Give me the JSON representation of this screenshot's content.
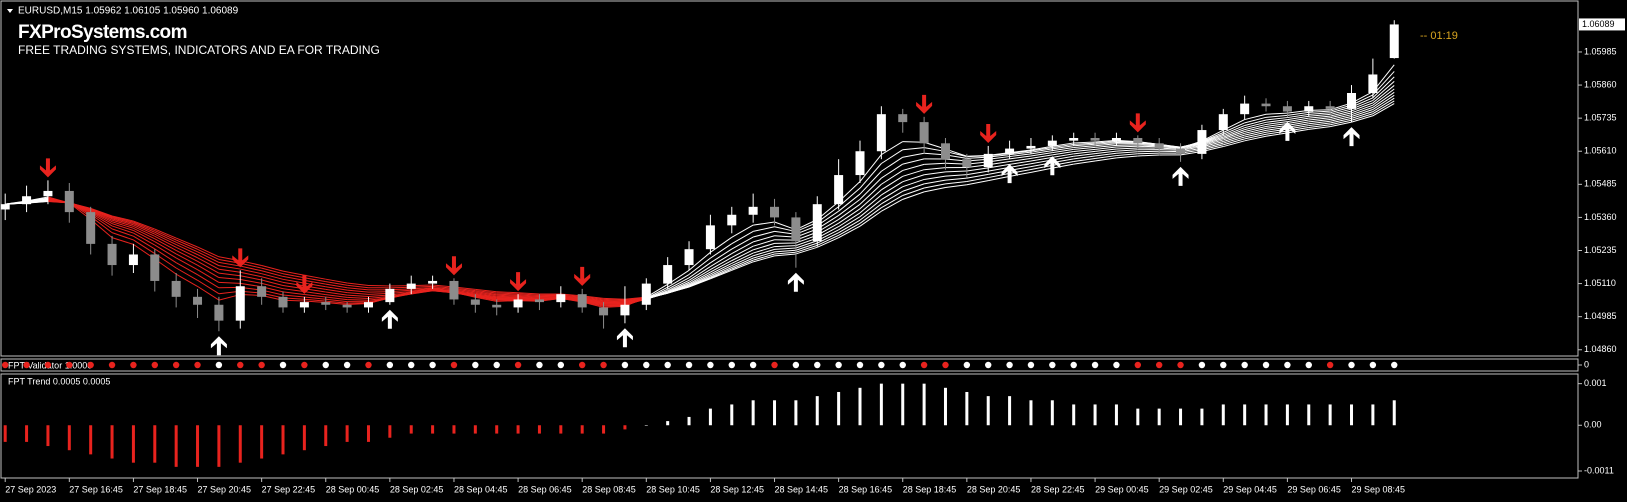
{
  "watermark": {
    "brand": "FXProSystems.com",
    "tagline": "FREE TRADING SYSTEMS, INDICATORS AND EA FOR TRADING"
  },
  "countdown": "-- 01:19",
  "chart_data": [
    {
      "type": "candlestick",
      "title": "EURUSD,M15  1.05962 1.06105 1.05960 1.06089",
      "categories": [
        "27 Sep 2023",
        null,
        null,
        "27 Sep 16:45",
        null,
        null,
        "27 Sep 18:45",
        null,
        null,
        "27 Sep 20:45",
        null,
        null,
        "27 Sep 22:45",
        null,
        null,
        "28 Sep 00:45",
        null,
        null,
        "28 Sep 02:45",
        null,
        null,
        "28 Sep 04:45",
        null,
        null,
        "28 Sep 06:45",
        null,
        null,
        "28 Sep 08:45",
        null,
        null,
        "28 Sep 10:45",
        null,
        null,
        "28 Sep 12:45",
        null,
        null,
        "28 Sep 14:45",
        null,
        null,
        "28 Sep 16:45",
        null,
        null,
        "28 Sep 18:45",
        null,
        null,
        "28 Sep 20:45",
        null,
        null,
        "28 Sep 22:45",
        null,
        null,
        "29 Sep 00:45",
        null,
        null,
        "29 Sep 02:45",
        null,
        null,
        "29 Sep 04:45",
        null,
        null,
        "29 Sep 06:45",
        null,
        null,
        "29 Sep 08:45",
        null,
        null
      ],
      "open": [
        1.0539,
        1.0541,
        1.0544,
        1.0546,
        1.0538,
        1.0526,
        1.0518,
        1.0522,
        1.0512,
        1.0506,
        1.0503,
        1.0497,
        1.051,
        1.0506,
        1.0502,
        1.0504,
        1.0503,
        1.0502,
        1.0504,
        1.0509,
        1.0511,
        1.0512,
        1.0505,
        1.0503,
        1.0502,
        1.0505,
        1.0504,
        1.0507,
        1.0502,
        1.0499,
        1.0503,
        1.0511,
        1.0518,
        1.0524,
        1.0533,
        1.0537,
        1.054,
        1.0536,
        1.0527,
        1.0541,
        1.0552,
        1.0561,
        1.0575,
        1.0572,
        1.0564,
        1.0558,
        1.0555,
        1.056,
        1.0562,
        1.0563,
        1.0565,
        1.0566,
        1.0565,
        1.0566,
        1.0564,
        1.0562,
        1.056,
        1.0569,
        1.0575,
        1.0579,
        1.0578,
        1.0576,
        1.0578,
        1.0577,
        1.0583,
        1.05962
      ],
      "high": [
        1.0545,
        1.0548,
        1.055,
        1.0549,
        1.054,
        1.0529,
        1.0526,
        1.0524,
        1.0515,
        1.0509,
        1.0506,
        1.0516,
        1.0513,
        1.0508,
        1.0506,
        1.0506,
        1.0504,
        1.0506,
        1.0511,
        1.0514,
        1.0514,
        1.0513,
        1.0507,
        1.0505,
        1.0507,
        1.0507,
        1.051,
        1.0509,
        1.0504,
        1.051,
        1.0513,
        1.0521,
        1.0527,
        1.0537,
        1.054,
        1.0545,
        1.0543,
        1.0538,
        1.0544,
        1.0558,
        1.0565,
        1.0578,
        1.0577,
        1.0574,
        1.0566,
        1.056,
        1.0563,
        1.0565,
        1.0566,
        1.0567,
        1.0568,
        1.0568,
        1.0568,
        1.0567,
        1.0566,
        1.0564,
        1.0571,
        1.0577,
        1.0582,
        1.0581,
        1.058,
        1.058,
        1.058,
        1.0586,
        1.0596,
        1.06105
      ],
      "low": [
        1.0535,
        1.0538,
        1.0541,
        1.0534,
        1.0522,
        1.0514,
        1.0515,
        1.0508,
        1.0502,
        1.0498,
        1.0493,
        1.0494,
        1.0503,
        1.05,
        1.05,
        1.0501,
        1.05,
        1.05,
        1.0503,
        1.0507,
        1.0509,
        1.0503,
        1.05,
        1.0499,
        1.05,
        1.0501,
        1.0502,
        1.05,
        1.0494,
        1.0496,
        1.0501,
        1.0509,
        1.0516,
        1.0522,
        1.053,
        1.0534,
        1.0533,
        1.0517,
        1.0525,
        1.0539,
        1.0549,
        1.0558,
        1.0568,
        1.056,
        1.0554,
        1.0551,
        1.0553,
        1.0558,
        1.056,
        1.0561,
        1.0563,
        1.0563,
        1.0563,
        1.0562,
        1.056,
        1.0557,
        1.0558,
        1.0567,
        1.0573,
        1.0576,
        1.0574,
        1.0574,
        1.0575,
        1.0572,
        1.0581,
        1.0596
      ],
      "close": [
        1.0541,
        1.0544,
        1.0546,
        1.0538,
        1.0526,
        1.0518,
        1.0522,
        1.0512,
        1.0506,
        1.0503,
        1.0497,
        1.051,
        1.0506,
        1.0502,
        1.0504,
        1.0503,
        1.0502,
        1.0504,
        1.0509,
        1.0511,
        1.0512,
        1.0505,
        1.0503,
        1.0502,
        1.0505,
        1.0504,
        1.0507,
        1.0502,
        1.0499,
        1.0503,
        1.0511,
        1.0518,
        1.0524,
        1.0533,
        1.0537,
        1.054,
        1.0536,
        1.0527,
        1.0541,
        1.0552,
        1.0561,
        1.0575,
        1.0572,
        1.0564,
        1.0558,
        1.0555,
        1.056,
        1.0562,
        1.0563,
        1.0565,
        1.0566,
        1.0565,
        1.0566,
        1.0564,
        1.0562,
        1.056,
        1.0569,
        1.0575,
        1.0579,
        1.0578,
        1.0576,
        1.0578,
        1.0577,
        1.0583,
        1.059,
        1.06089
      ],
      "up_color": "#ffffff",
      "down_color": "#8c8c8c",
      "buy_color": "#ffffff",
      "sell_color": "#e8231e",
      "buy_signals": [
        10,
        18,
        29,
        37,
        47,
        49,
        55,
        60,
        63
      ],
      "sell_signals": [
        2,
        11,
        14,
        21,
        24,
        27,
        43,
        46,
        53
      ],
      "ylim": [
        1.04844,
        1.0617
      ],
      "yticks": [
        {
          "value": 1.0486,
          "label": "1.04860"
        },
        {
          "value": 1.04985,
          "label": "1.04985"
        },
        {
          "value": 1.0511,
          "label": "1.05110"
        },
        {
          "value": 1.05235,
          "label": "1.05235"
        },
        {
          "value": 1.0536,
          "label": "1.05360"
        },
        {
          "value": 1.05485,
          "label": "1.05485"
        },
        {
          "value": 1.0561,
          "label": "1.05610"
        },
        {
          "value": 1.05735,
          "label": "1.05735"
        },
        {
          "value": 1.0586,
          "label": "1.05860"
        },
        {
          "value": 1.05985,
          "label": "1.05985"
        }
      ],
      "price_marker": {
        "value": 1.06089,
        "label": "1.06089"
      },
      "grid": false
    },
    {
      "type": "dots",
      "title": "FPT Validator 1.0000",
      "ylim": [
        -1,
        1
      ],
      "yticks": [
        0
      ],
      "colors": [
        "#e8231e",
        "#e8231e",
        "#e8231e",
        "#e8231e",
        "#e8231e",
        "#e8231e",
        "#e8231e",
        "#e8231e",
        "#e8231e",
        "#e8231e",
        "#ffffff",
        "#e8231e",
        "#e8231e",
        "#ffffff",
        "#e8231e",
        "#ffffff",
        "#ffffff",
        "#e8231e",
        "#ffffff",
        "#ffffff",
        "#ffffff",
        "#e8231e",
        "#ffffff",
        "#ffffff",
        "#e8231e",
        "#ffffff",
        "#ffffff",
        "#e8231e",
        "#e8231e",
        "#ffffff",
        "#ffffff",
        "#ffffff",
        "#ffffff",
        "#ffffff",
        "#ffffff",
        "#ffffff",
        "#e8231e",
        "#ffffff",
        "#ffffff",
        "#ffffff",
        "#ffffff",
        "#ffffff",
        "#ffffff",
        "#e8231e",
        "#e8231e",
        "#ffffff",
        "#ffffff",
        "#ffffff",
        "#ffffff",
        "#ffffff",
        "#ffffff",
        "#ffffff",
        "#ffffff",
        "#e8231e",
        "#e8231e",
        "#e8231e",
        "#ffffff",
        "#ffffff",
        "#ffffff",
        "#ffffff",
        "#ffffff",
        "#ffffff",
        "#e8231e",
        "#ffffff",
        "#ffffff",
        "#ffffff"
      ]
    },
    {
      "type": "bar",
      "title": "FPT Trend 0.0005 0.0005",
      "positive_color": "#ffffff",
      "negative_color": "#e8231e",
      "values": [
        -0.0004,
        -0.0004,
        -0.0005,
        -0.0006,
        -0.0007,
        -0.0008,
        -0.0009,
        -0.0009,
        -0.001,
        -0.001,
        -0.001,
        -0.0009,
        -0.0008,
        -0.0007,
        -0.0006,
        -0.0005,
        -0.0004,
        -0.0004,
        -0.0003,
        -0.0002,
        -0.0002,
        -0.0002,
        -0.0002,
        -0.0002,
        -0.0002,
        -0.0002,
        -0.0002,
        -0.0002,
        -0.0002,
        -0.0001,
        0,
        0.0001,
        0.0002,
        0.0004,
        0.0005,
        0.0006,
        0.0006,
        0.0006,
        0.0007,
        0.0008,
        0.0009,
        0.001,
        0.001,
        0.001,
        0.0009,
        0.0008,
        0.0007,
        0.0007,
        0.0006,
        0.0006,
        0.0005,
        0.0005,
        0.0005,
        0.0004,
        0.0004,
        0.0004,
        0.0004,
        0.0005,
        0.0005,
        0.0005,
        0.0005,
        0.0005,
        0.0005,
        0.0005,
        0.0005,
        0.0006
      ],
      "ylim": [
        -0.00122,
        0.00116
      ],
      "yticks": [
        -0.0011,
        {
          "value": 0,
          "label": "0.00"
        },
        0.001
      ]
    }
  ]
}
